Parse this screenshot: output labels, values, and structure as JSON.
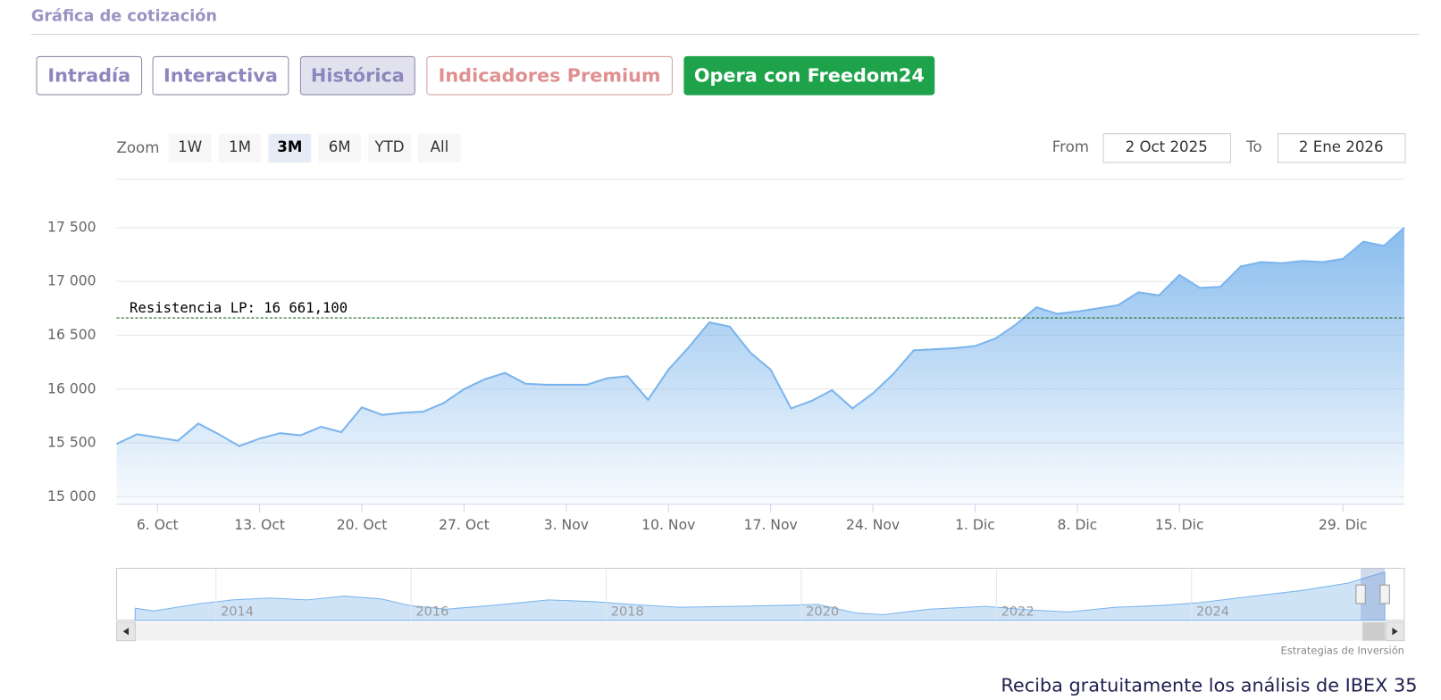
{
  "header": {
    "title": "Gráfica de cotización"
  },
  "tabs": [
    "Intradía",
    "Interactiva",
    "Histórica",
    "Indicadores Premium",
    "Opera con Freedom24"
  ],
  "zoom": {
    "label": "Zoom",
    "buttons": [
      "1W",
      "1M",
      "3M",
      "6M",
      "YTD",
      "All"
    ]
  },
  "range": {
    "from_label": "From",
    "from": "2 Oct 2025",
    "to_label": "To",
    "to": "2 Ene 2026"
  },
  "chart_data": {
    "type": "area",
    "color": "#7cb5ec",
    "categories": [
      null,
      null,
      "6. Oct",
      null,
      null,
      null,
      null,
      "13. Oct",
      null,
      null,
      null,
      null,
      "20. Oct",
      null,
      null,
      null,
      null,
      "27. Oct",
      null,
      null,
      null,
      null,
      "3. Nov",
      null,
      null,
      null,
      null,
      "10. Nov",
      null,
      null,
      null,
      null,
      "17. Nov",
      null,
      null,
      null,
      null,
      "24. Nov",
      null,
      null,
      null,
      null,
      "1. Dic",
      null,
      null,
      null,
      null,
      "8. Dic",
      null,
      null,
      null,
      null,
      "15. Dic",
      null,
      null,
      null,
      null,
      null,
      null,
      null,
      "29. Dic",
      null,
      null,
      null
    ],
    "values": [
      15490,
      15580,
      15550,
      15520,
      15680,
      15580,
      15470,
      15540,
      15590,
      15570,
      15650,
      15600,
      15830,
      15760,
      15780,
      15790,
      15870,
      16000,
      16090,
      16150,
      16050,
      16040,
      16040,
      16040,
      16100,
      16120,
      15900,
      16180,
      16390,
      16620,
      16580,
      16340,
      16180,
      15820,
      15890,
      15990,
      15820,
      15960,
      16140,
      16360,
      16370,
      16380,
      16400,
      16470,
      16600,
      16760,
      16700,
      16720,
      16750,
      16780,
      16900,
      16870,
      17060,
      16940,
      16950,
      17140,
      17180,
      17170,
      17190,
      17180,
      17210,
      17370,
      17330,
      17500
    ],
    "ylim": [
      14930,
      17950
    ],
    "yticks": [
      {
        "value": 15000,
        "label": "15 000"
      },
      {
        "value": 15500,
        "label": "15 500"
      },
      {
        "value": 16000,
        "label": "16 000"
      },
      {
        "value": 16500,
        "label": "16 500"
      },
      {
        "value": 17000,
        "label": "17 000"
      },
      {
        "value": 17500,
        "label": "17 500"
      }
    ],
    "grid": true,
    "resistance": {
      "value": 16661.1,
      "label": "Resistencia LP: 16 661,100"
    }
  },
  "navigator": {
    "years": [
      "2014",
      "2016",
      "2018",
      "2020",
      "2022",
      "2024"
    ]
  },
  "credit": "Estrategias de Inversión",
  "footer": "Reciba gratuitamente los análisis de IBEX 35"
}
